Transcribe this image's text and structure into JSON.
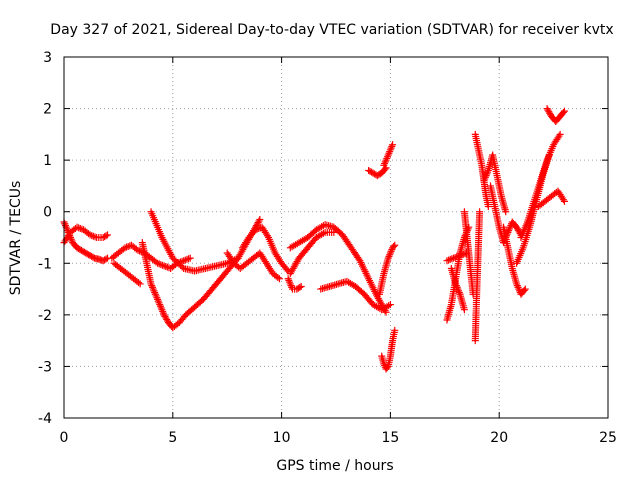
{
  "chart_data": {
    "type": "scatter",
    "title": "Day 327 of 2021, Sidereal Day-to-day VTEC variation (SDTVAR) for receiver kvtx",
    "xlabel": "GPS time / hours",
    "ylabel": "SDTVAR / TECUs",
    "xlim": [
      0,
      25
    ],
    "ylim": [
      -4,
      3
    ],
    "xticks": [
      "0",
      "5",
      "10",
      "15",
      "20",
      "25"
    ],
    "yticks": [
      "3",
      "2",
      "1",
      "0",
      "-1",
      "-2",
      "-3",
      "-4"
    ],
    "grid": true,
    "marker": "plus",
    "color": "#ff0000",
    "series": [
      {
        "name": "s1",
        "x": [
          0.0,
          0.2,
          0.4,
          0.6,
          0.8,
          1.0,
          1.2,
          1.4,
          1.6,
          1.8,
          2.0
        ],
        "y": [
          -0.2,
          -0.4,
          -0.6,
          -0.7,
          -0.75,
          -0.8,
          -0.85,
          -0.9,
          -0.92,
          -0.95,
          -0.9
        ]
      },
      {
        "name": "s2",
        "x": [
          0.0,
          0.3,
          0.6,
          0.9,
          1.2,
          1.5,
          1.8,
          2.0
        ],
        "y": [
          -0.6,
          -0.4,
          -0.3,
          -0.35,
          -0.45,
          -0.5,
          -0.5,
          -0.45
        ]
      },
      {
        "name": "s3",
        "x": [
          2.2,
          2.5,
          2.8,
          3.1,
          3.4,
          3.7,
          4.0,
          4.3,
          4.6,
          4.9,
          5.2,
          5.5,
          5.8
        ],
        "y": [
          -0.9,
          -0.8,
          -0.7,
          -0.65,
          -0.75,
          -0.8,
          -0.9,
          -1.0,
          -1.05,
          -1.1,
          -1.0,
          -0.95,
          -0.9
        ]
      },
      {
        "name": "s4",
        "x": [
          2.3,
          2.6,
          2.9,
          3.2,
          3.5
        ],
        "y": [
          -1.0,
          -1.1,
          -1.2,
          -1.3,
          -1.4
        ]
      },
      {
        "name": "s5",
        "x": [
          3.6,
          3.8,
          4.0,
          4.2,
          4.4,
          4.6,
          4.8,
          5.0,
          5.3,
          5.6,
          6.0,
          6.4,
          6.8,
          7.2,
          7.6,
          8.0,
          8.4,
          8.8,
          9.0
        ],
        "y": [
          -0.6,
          -1.0,
          -1.4,
          -1.6,
          -1.8,
          -2.0,
          -2.15,
          -2.25,
          -2.15,
          -2.0,
          -1.85,
          -1.7,
          -1.5,
          -1.3,
          -1.1,
          -0.9,
          -0.6,
          -0.3,
          -0.15
        ]
      },
      {
        "name": "s6",
        "x": [
          4.0,
          4.5,
          5.0,
          5.5,
          6.0,
          6.5,
          7.0,
          7.5,
          8.0
        ],
        "y": [
          0.0,
          -0.5,
          -0.9,
          -1.1,
          -1.15,
          -1.1,
          -1.05,
          -1.0,
          -0.9
        ]
      },
      {
        "name": "s7",
        "x": [
          7.5,
          7.8,
          8.1,
          8.4,
          8.7,
          9.0,
          9.3,
          9.6,
          9.9
        ],
        "y": [
          -0.8,
          -1.0,
          -1.1,
          -1.0,
          -0.9,
          -0.8,
          -1.0,
          -1.2,
          -1.3
        ]
      },
      {
        "name": "s8",
        "x": [
          8.2,
          8.5,
          8.8,
          9.1,
          9.4,
          9.7,
          10.0,
          10.3
        ],
        "y": [
          -0.7,
          -0.5,
          -0.35,
          -0.3,
          -0.5,
          -0.8,
          -1.0,
          -1.15
        ]
      },
      {
        "name": "s9",
        "x": [
          10.3,
          10.4,
          10.5,
          10.7,
          10.9
        ],
        "y": [
          -1.3,
          -1.4,
          -1.5,
          -1.5,
          -1.45
        ]
      },
      {
        "name": "s10",
        "x": [
          10.4,
          10.8,
          11.2,
          11.6,
          12.0,
          12.4,
          12.8,
          13.2,
          13.6,
          14.0,
          14.4,
          14.8
        ],
        "y": [
          -0.7,
          -0.6,
          -0.5,
          -0.35,
          -0.25,
          -0.3,
          -0.45,
          -0.7,
          -0.95,
          -1.3,
          -1.65,
          -1.95
        ]
      },
      {
        "name": "s11",
        "x": [
          10.4,
          10.8,
          11.2,
          11.6,
          12.0,
          12.4
        ],
        "y": [
          -1.2,
          -0.9,
          -0.7,
          -0.5,
          -0.4,
          -0.4
        ]
      },
      {
        "name": "s12",
        "x": [
          11.8,
          12.2,
          12.6,
          13.0,
          13.4,
          13.8,
          14.2,
          14.6,
          15.0
        ],
        "y": [
          -1.5,
          -1.45,
          -1.4,
          -1.35,
          -1.45,
          -1.6,
          -1.8,
          -1.9,
          -1.8
        ]
      },
      {
        "name": "s13",
        "x": [
          14.0,
          14.2,
          14.4,
          14.6,
          14.8
        ],
        "y": [
          0.8,
          0.75,
          0.7,
          0.75,
          0.85
        ]
      },
      {
        "name": "s14",
        "x": [
          14.7,
          14.8,
          14.9,
          15.0,
          15.1
        ],
        "y": [
          0.9,
          1.0,
          1.1,
          1.2,
          1.3
        ]
      },
      {
        "name": "s15",
        "x": [
          14.5,
          14.7,
          14.9,
          15.1,
          15.2
        ],
        "y": [
          -1.6,
          -1.2,
          -0.9,
          -0.7,
          -0.65
        ]
      },
      {
        "name": "s16",
        "x": [
          14.6,
          14.7,
          14.8,
          14.9,
          15.0,
          15.1,
          15.2
        ],
        "y": [
          -2.8,
          -2.95,
          -3.05,
          -3.0,
          -2.8,
          -2.5,
          -2.3
        ]
      },
      {
        "name": "s17",
        "x": [
          17.6,
          17.8,
          18.0,
          18.2,
          18.4,
          18.6
        ],
        "y": [
          -2.1,
          -1.8,
          -1.3,
          -0.8,
          -0.5,
          -0.3
        ]
      },
      {
        "name": "s18",
        "x": [
          17.6,
          17.9,
          18.2,
          18.5
        ],
        "y": [
          -0.95,
          -0.9,
          -0.85,
          -0.8
        ]
      },
      {
        "name": "s19",
        "x": [
          17.8,
          18.0,
          18.2,
          18.4
        ],
        "y": [
          -1.1,
          -1.4,
          -1.6,
          -1.9
        ]
      },
      {
        "name": "s20",
        "x": [
          18.4,
          18.5,
          18.6,
          18.7,
          18.8
        ],
        "y": [
          0.0,
          -0.4,
          -0.8,
          -1.2,
          -1.6
        ]
      },
      {
        "name": "s21",
        "x": [
          18.9,
          18.95,
          19.0,
          19.05,
          19.1
        ],
        "y": [
          -2.5,
          -1.8,
          -1.2,
          -0.6,
          0.0
        ]
      },
      {
        "name": "s22",
        "x": [
          18.9,
          19.0,
          19.1,
          19.2,
          19.3,
          19.4,
          19.5
        ],
        "y": [
          1.5,
          1.3,
          1.1,
          0.9,
          0.6,
          0.3,
          0.1
        ]
      },
      {
        "name": "s23",
        "x": [
          19.3,
          19.5,
          19.7,
          19.9,
          20.1,
          20.3
        ],
        "y": [
          0.6,
          0.8,
          1.1,
          0.7,
          0.3,
          0.0
        ]
      },
      {
        "name": "s24",
        "x": [
          19.6,
          19.8,
          20.0,
          20.2,
          20.4,
          20.6,
          20.8,
          21.0
        ],
        "y": [
          0.5,
          0.1,
          -0.3,
          -0.6,
          -0.4,
          -0.2,
          -0.3,
          -0.45
        ]
      },
      {
        "name": "s25",
        "x": [
          20.2,
          20.4,
          20.6,
          20.8,
          21.0,
          21.2
        ],
        "y": [
          -0.3,
          -0.7,
          -1.1,
          -1.4,
          -1.6,
          -1.5
        ]
      },
      {
        "name": "s26",
        "x": [
          21.0,
          21.3,
          21.6,
          21.9,
          22.2,
          22.5,
          22.8
        ],
        "y": [
          -0.5,
          -0.2,
          0.2,
          0.6,
          1.0,
          1.3,
          1.5
        ]
      },
      {
        "name": "s27",
        "x": [
          20.8,
          21.1,
          21.4,
          21.7,
          22.0,
          22.3
        ],
        "y": [
          -1.0,
          -0.7,
          -0.3,
          0.2,
          0.7,
          1.1
        ]
      },
      {
        "name": "s28",
        "x": [
          22.2,
          22.4,
          22.6,
          22.8,
          23.0
        ],
        "y": [
          2.0,
          1.85,
          1.75,
          1.85,
          1.95
        ]
      },
      {
        "name": "s29",
        "x": [
          21.8,
          22.1,
          22.4,
          22.7,
          23.0
        ],
        "y": [
          0.1,
          0.2,
          0.3,
          0.4,
          0.2
        ]
      }
    ]
  }
}
